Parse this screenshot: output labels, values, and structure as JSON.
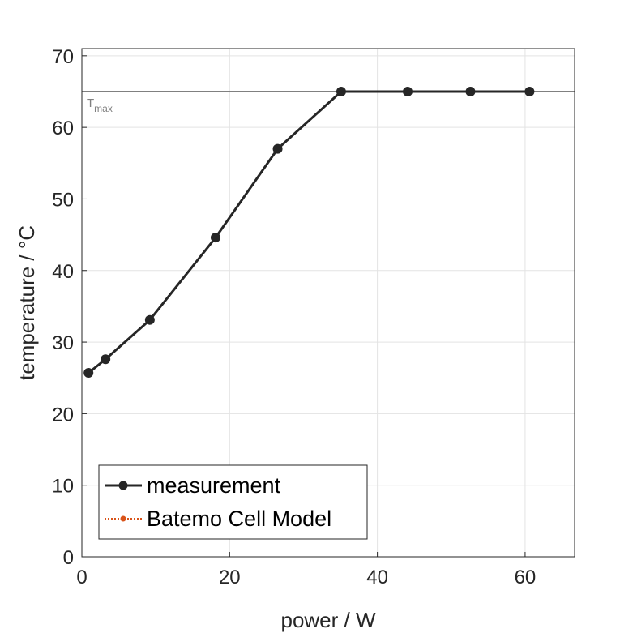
{
  "chart_data": {
    "type": "line",
    "xlabel": "power / W",
    "ylabel": "temperature / °C",
    "xlim": [
      0,
      66.7
    ],
    "ylim": [
      0,
      71
    ],
    "xticks": [
      0,
      20,
      40,
      60
    ],
    "yticks": [
      0,
      10,
      20,
      30,
      40,
      50,
      60,
      70
    ],
    "grid": true,
    "legend_position": "bottom-left",
    "series": [
      {
        "name": "measurement",
        "color": "#262626",
        "line_style": "solid",
        "marker": "circle",
        "x": [
          0.9,
          3.2,
          9.2,
          18.1,
          26.5,
          35.1,
          44.1,
          52.6,
          60.6
        ],
        "y": [
          25.7,
          27.6,
          33.1,
          44.6,
          57.0,
          65.0,
          65.0,
          65.0,
          65.0
        ]
      },
      {
        "name": "Batemo Cell Model",
        "color": "#d95319",
        "line_style": "dotted",
        "marker": "circle",
        "x": [],
        "y": []
      }
    ],
    "reference_lines": [
      {
        "axis": "y",
        "value": 65,
        "label_main": "T",
        "label_sub": "max",
        "color": "#808080"
      }
    ]
  }
}
